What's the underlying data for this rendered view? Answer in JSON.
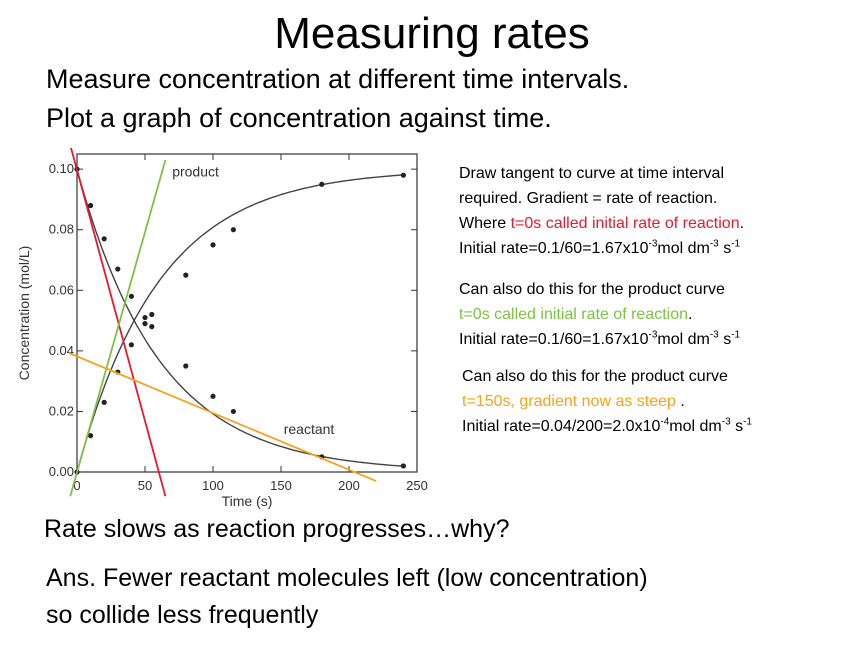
{
  "slide": {
    "title": "Measuring rates",
    "intro": [
      "Measure concentration at different time intervals.",
      "Plot a graph of concentration against time."
    ],
    "note1": {
      "line1": "Draw tangent to curve at time interval",
      "line2": "required. Gradient = rate of reaction.",
      "line3_pre": "Where ",
      "line3_colored": "t=0s called initial rate of reaction",
      "line3_post": ".",
      "rate_pre": "Initial rate=0.1/60=1.67x10",
      "rate_exp": "-3",
      "rate_unit": "mol dm",
      "unit_exp1": "-3",
      "unit_s": " s",
      "unit_exp2": "-1"
    },
    "note2": {
      "line1": "Can also do this for the product curve",
      "line2_colored": "t=0s called initial rate of reaction",
      "line2_post": ".",
      "rate_pre": "Initial rate=0.1/60=1.67x10",
      "rate_exp": "-3",
      "rate_unit": "mol dm",
      "unit_exp1": "-3",
      "unit_s": " s",
      "unit_exp2": "-1"
    },
    "note3": {
      "line1": "Can also do this for the product curve",
      "line2_colored": "t=150s, gradient now as steep",
      "line2_post": " .",
      "rate_pre": "Initial rate=0.04/200=2.0x10",
      "rate_exp": "-4",
      "rate_unit": "mol dm",
      "unit_exp1": "-3",
      "unit_s": " s",
      "unit_exp2": "-1"
    },
    "question": "Rate slows as reaction progresses…why?",
    "answer": [
      "Ans. Fewer reactant molecules left (low concentration)",
      "so collide less frequently"
    ],
    "colors": {
      "red": "#e8192c",
      "green": "#7dc242",
      "orange": "#f7a21b",
      "curve": "#444444"
    }
  },
  "chart_data": {
    "type": "line",
    "xlabel": "Time (s)",
    "ylabel": "Concentration (mol/L)",
    "xlim": [
      0,
      250
    ],
    "ylim": [
      0,
      0.105
    ],
    "xticks": [
      0,
      50,
      100,
      150,
      200,
      250
    ],
    "yticks": [
      0.0,
      0.02,
      0.04,
      0.06,
      0.08,
      0.1
    ],
    "xtick_labels": [
      "0",
      "50",
      "100",
      "150",
      "200",
      "250"
    ],
    "ytick_labels": [
      "0.00",
      "0.02",
      "0.04",
      "0.06",
      "0.08",
      "0.10"
    ],
    "grid": false,
    "series": [
      {
        "name": "product",
        "x": [
          0,
          10,
          20,
          30,
          40,
          50,
          55,
          80,
          100,
          115,
          180,
          240
        ],
        "y": [
          0.0,
          0.012,
          0.023,
          0.033,
          0.042,
          0.049,
          0.052,
          0.065,
          0.075,
          0.08,
          0.095,
          0.098
        ]
      },
      {
        "name": "reactant",
        "x": [
          0,
          10,
          20,
          30,
          40,
          50,
          55,
          80,
          100,
          115,
          180,
          240
        ],
        "y": [
          0.1,
          0.088,
          0.077,
          0.067,
          0.058,
          0.051,
          0.048,
          0.035,
          0.025,
          0.02,
          0.005,
          0.002
        ]
      }
    ],
    "tangents": [
      {
        "color": "red",
        "x": [
          -5,
          65
        ],
        "y": [
          0.108,
          -0.008
        ]
      },
      {
        "color": "green",
        "x": [
          -5,
          65
        ],
        "y": [
          -0.008,
          0.103
        ]
      },
      {
        "color": "orange",
        "x": [
          -15,
          220
        ],
        "y": [
          0.041,
          -0.003
        ]
      }
    ]
  }
}
